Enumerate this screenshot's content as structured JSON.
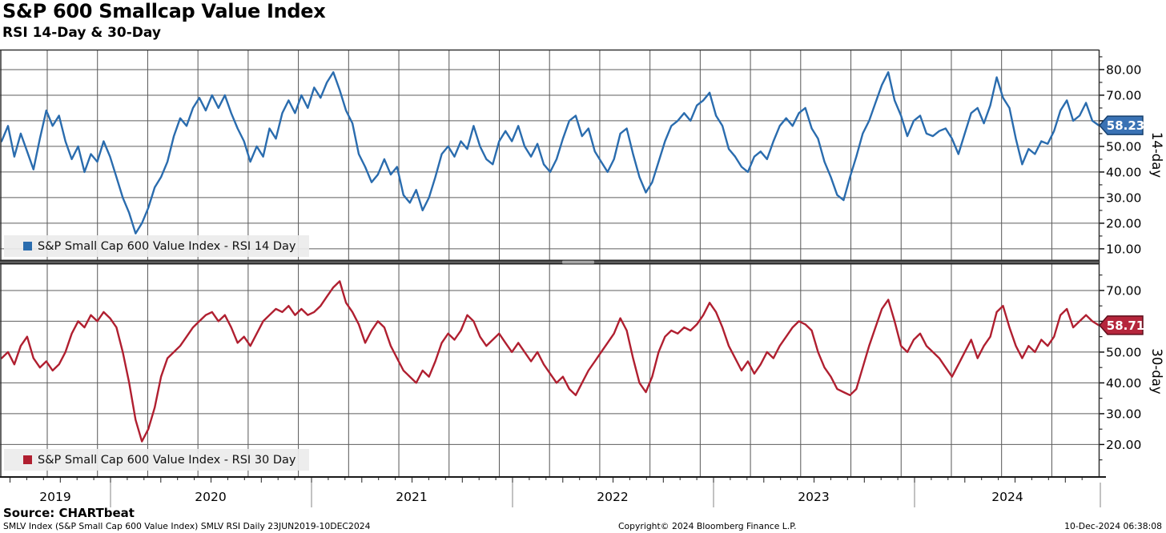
{
  "page": {
    "title": "S&P 600 Smallcap Value Index",
    "subtitle": "RSI 14-Day & 30-Day"
  },
  "footer": {
    "source": "Source: CHARTbeat",
    "description": "SMLV Index (S&P Small Cap 600 Value Index) SMLV RSI  Daily 23JUN2019-10DEC2024",
    "copyright": "Copyright© 2024 Bloomberg Finance L.P.",
    "timestamp": "10-Dec-2024 06:38:08"
  },
  "chart_data": {
    "type": "line",
    "title": "S&P 600 Smallcap Value Index",
    "subtitle": "RSI 14-Day & 30-Day",
    "grid": true,
    "x_axis": {
      "start": "23JUN2019",
      "end": "10DEC2024",
      "years": [
        "2019",
        "2020",
        "2021",
        "2022",
        "2023",
        "2024"
      ]
    },
    "panels": [
      {
        "id": "rsi14",
        "axis_label": "14-day",
        "legend": "S&P Small Cap 600 Value Index - RSI 14 Day",
        "color": "#2A6CAE",
        "tag_fill": "#3A72B4",
        "tag_border": "#16406E",
        "last_value": 58.23,
        "last_label": "58.23",
        "ylim": [
          5.6,
          87.8
        ],
        "yticks": [
          80,
          70,
          60,
          50,
          40,
          30,
          20,
          10
        ],
        "values": [
          52,
          58,
          46,
          55,
          48,
          41,
          53,
          64,
          58,
          62,
          52,
          45,
          50,
          40,
          47,
          44,
          52,
          46,
          38,
          30,
          24,
          16,
          20,
          26,
          34,
          38,
          44,
          54,
          61,
          58,
          65,
          69,
          64,
          70,
          65,
          70,
          63,
          57,
          52,
          44,
          50,
          46,
          57,
          53,
          63,
          68,
          63,
          70,
          65,
          73,
          69,
          75,
          79,
          72,
          64,
          59,
          47,
          42,
          36,
          39,
          45,
          39,
          42,
          31,
          28,
          33,
          25,
          30,
          38,
          47,
          50,
          46,
          52,
          49,
          58,
          50,
          45,
          43,
          52,
          56,
          52,
          58,
          50,
          46,
          51,
          43,
          40,
          45,
          53,
          60,
          62,
          54,
          57,
          48,
          44,
          40,
          45,
          55,
          57,
          47,
          38,
          32,
          36,
          44,
          52,
          58,
          60,
          63,
          60,
          66,
          68,
          71,
          62,
          58,
          49,
          46,
          42,
          40,
          46,
          48,
          45,
          52,
          58,
          61,
          58,
          63,
          65,
          57,
          53,
          44,
          38,
          31,
          29,
          38,
          46,
          55,
          60,
          67,
          74,
          79,
          68,
          62,
          54,
          60,
          62,
          55,
          54,
          56,
          57,
          53,
          47,
          55,
          63,
          65,
          59,
          66,
          77,
          69,
          65,
          53,
          43,
          49,
          47,
          52,
          51,
          56,
          64,
          68,
          60,
          62,
          67,
          60,
          58.23
        ]
      },
      {
        "id": "rsi30",
        "axis_label": "30-day",
        "legend": "S&P Small Cap 600 Value Index - RSI 30 Day",
        "color": "#B01F30",
        "tag_fill": "#B5263C",
        "tag_border": "#5E0E1B",
        "last_value": 58.71,
        "last_label": "58.71",
        "ylim": [
          9.2,
          78.3
        ],
        "yticks": [
          70,
          60,
          50,
          40,
          30,
          20
        ],
        "values": [
          48,
          50,
          46,
          52,
          55,
          48,
          45,
          47,
          44,
          46,
          50,
          56,
          60,
          58,
          62,
          60,
          63,
          61,
          58,
          50,
          40,
          28,
          21,
          25,
          32,
          42,
          48,
          50,
          52,
          55,
          58,
          60,
          62,
          63,
          60,
          62,
          58,
          53,
          55,
          52,
          56,
          60,
          62,
          64,
          63,
          65,
          62,
          64,
          62,
          63,
          65,
          68,
          71,
          73,
          66,
          63,
          59,
          53,
          57,
          60,
          58,
          52,
          48,
          44,
          42,
          40,
          44,
          42,
          47,
          53,
          56,
          54,
          57,
          62,
          60,
          55,
          52,
          54,
          56,
          53,
          50,
          53,
          50,
          47,
          50,
          46,
          43,
          40,
          42,
          38,
          36,
          40,
          44,
          47,
          50,
          53,
          56,
          61,
          57,
          48,
          40,
          37,
          42,
          50,
          55,
          57,
          56,
          58,
          57,
          59,
          62,
          66,
          63,
          58,
          52,
          48,
          44,
          47,
          43,
          46,
          50,
          48,
          52,
          55,
          58,
          60,
          59,
          57,
          50,
          45,
          42,
          38,
          37,
          36,
          38,
          45,
          52,
          58,
          64,
          67,
          60,
          52,
          50,
          54,
          56,
          52,
          50,
          48,
          45,
          42,
          46,
          50,
          54,
          48,
          52,
          55,
          63,
          65,
          58,
          52,
          48,
          52,
          50,
          54,
          52,
          55,
          62,
          64,
          58,
          60,
          62,
          60,
          58.71
        ]
      }
    ]
  }
}
